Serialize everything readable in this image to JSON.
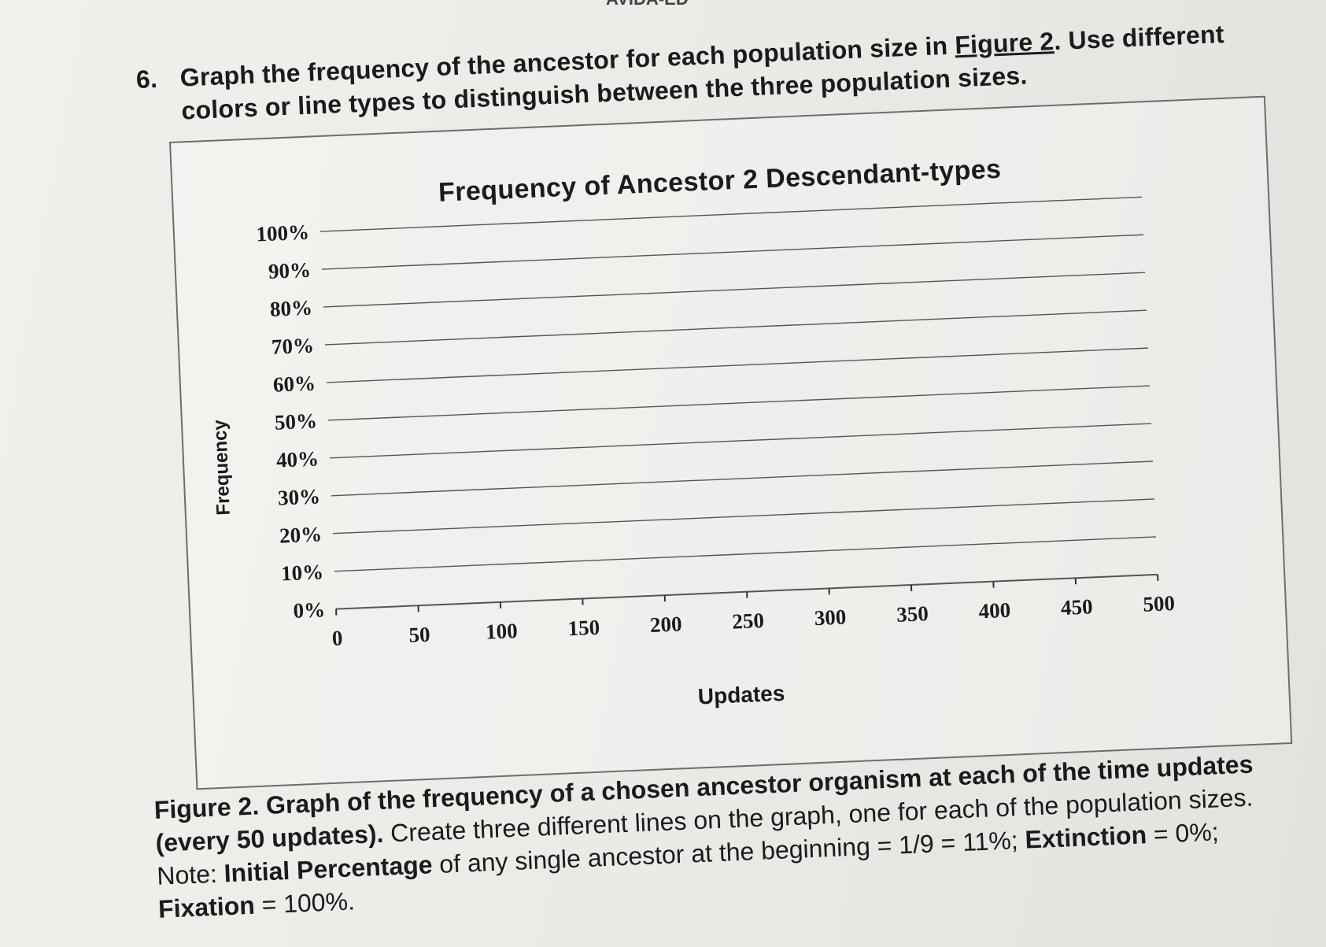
{
  "page": {
    "header_stub": "AVIDA-ED"
  },
  "question": {
    "number": "6.",
    "text_before": "Graph the frequency of the ancestor for each population size in ",
    "figure_ref": "Figure 2",
    "text_after": ". Use different",
    "line2": "colors or line types to distinguish between the three population sizes."
  },
  "chart_data": {
    "type": "line",
    "title": "Frequency of Ancestor 2 Descendant-types",
    "xlabel": "Updates",
    "ylabel": "Frequency",
    "x_ticks": [
      "0",
      "50",
      "100",
      "150",
      "200",
      "250",
      "300",
      "350",
      "400",
      "450",
      "500"
    ],
    "y_ticks": [
      "0%",
      "10%",
      "20%",
      "30%",
      "40%",
      "50%",
      "60%",
      "70%",
      "80%",
      "90%",
      "100%"
    ],
    "xlim": [
      0,
      500
    ],
    "ylim": [
      0,
      100
    ],
    "grid": true,
    "series": []
  },
  "caption": {
    "label": "Figure 2. Graph of the frequency of a chosen ancestor organism at each of the time updates (every 50 updates).",
    "body": " Create three different lines on the graph, one for each of the population sizes. Note: ",
    "initial_label": "Initial Percentage",
    "initial_text": " of any single ancestor at the beginning = 1/9 = 11%; ",
    "extinction_label": "Extinction",
    "extinction_text": " = 0%; ",
    "fixation_label": "Fixation",
    "fixation_text": " = 100%."
  }
}
